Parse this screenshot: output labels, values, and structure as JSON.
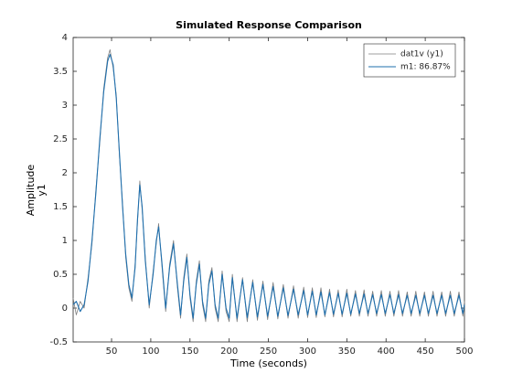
{
  "chart_data": {
    "type": "line",
    "title": "Simulated Response Comparison",
    "xlabel": "Time (seconds)",
    "ylabel": "Amplitude",
    "ylabel_sub": "y1",
    "x": [
      1,
      5,
      10,
      15,
      20,
      25,
      30,
      35,
      40,
      45,
      48,
      52,
      56,
      60,
      64,
      68,
      72,
      76,
      80,
      83,
      86,
      89,
      93,
      98,
      103,
      107,
      110,
      114,
      119,
      124,
      129,
      134,
      138,
      142,
      146,
      150,
      154,
      158,
      162,
      166,
      170,
      174,
      178,
      182,
      186,
      191,
      196,
      200,
      204,
      210,
      217,
      223,
      230,
      236,
      243,
      249,
      256,
      262,
      269,
      275,
      282,
      288,
      295,
      300,
      306,
      311,
      317,
      322,
      328,
      333,
      339,
      344,
      350,
      355,
      361,
      366,
      372,
      377,
      383,
      388,
      394,
      399,
      405,
      410,
      416,
      421,
      427,
      432,
      438,
      443,
      449,
      454,
      460,
      465,
      471,
      476,
      482,
      487,
      493,
      498,
      500
    ],
    "series": [
      {
        "name": "dat1v (y1)",
        "color": "#7f7f7f",
        "values": [
          0.15,
          -0.1,
          0.1,
          0,
          0.45,
          0.95,
          1.75,
          2.45,
          3.25,
          3.7,
          3.82,
          3.55,
          3.15,
          2.25,
          1.55,
          0.75,
          0.3,
          0.1,
          0.65,
          1.25,
          1.88,
          1.45,
          0.75,
          0,
          0.55,
          0.95,
          1.25,
          0.65,
          -0.05,
          0.65,
          1.0,
          0.3,
          -0.15,
          0.45,
          0.8,
          0.15,
          -0.2,
          0.4,
          0.7,
          0.05,
          -0.2,
          0.4,
          0.6,
          0,
          -0.2,
          0.55,
          -0.05,
          -0.2,
          0.5,
          -0.2,
          0.45,
          -0.2,
          0.42,
          -0.18,
          0.4,
          -0.17,
          0.38,
          -0.16,
          0.35,
          -0.15,
          0.33,
          -0.15,
          0.31,
          -0.14,
          0.3,
          -0.14,
          0.3,
          -0.13,
          0.28,
          -0.13,
          0.27,
          -0.13,
          0.28,
          -0.12,
          0.26,
          -0.12,
          0.27,
          -0.12,
          0.25,
          -0.12,
          0.26,
          -0.12,
          0.25,
          -0.12,
          0.26,
          -0.12,
          0.24,
          -0.12,
          0.25,
          -0.12,
          0.24,
          -0.12,
          0.25,
          -0.12,
          0.24,
          -0.12,
          0.25,
          -0.12,
          0.24,
          -0.12,
          0.1
        ]
      },
      {
        "name": "m1: 86.87%",
        "color": "#1f6fad",
        "values": [
          0.05,
          0.1,
          -0.05,
          0.05,
          0.4,
          1.0,
          1.7,
          2.5,
          3.2,
          3.65,
          3.75,
          3.6,
          3.1,
          2.3,
          1.5,
          0.8,
          0.35,
          0.15,
          0.6,
          1.3,
          1.82,
          1.5,
          0.7,
          0.05,
          0.5,
          1.0,
          1.2,
          0.7,
          0,
          0.6,
          0.95,
          0.35,
          -0.1,
          0.4,
          0.75,
          0.2,
          -0.15,
          0.35,
          0.65,
          0.1,
          -0.15,
          0.35,
          0.55,
          0.05,
          -0.15,
          0.5,
          0,
          -0.15,
          0.45,
          -0.15,
          0.42,
          -0.14,
          0.38,
          -0.13,
          0.35,
          -0.12,
          0.32,
          -0.12,
          0.3,
          -0.11,
          0.28,
          -0.1,
          0.26,
          -0.1,
          0.25,
          -0.1,
          0.24,
          -0.1,
          0.23,
          -0.09,
          0.22,
          -0.09,
          0.22,
          -0.09,
          0.21,
          -0.08,
          0.21,
          -0.08,
          0.2,
          -0.08,
          0.2,
          -0.08,
          0.2,
          -0.08,
          0.2,
          -0.08,
          0.19,
          -0.08,
          0.19,
          -0.08,
          0.19,
          -0.08,
          0.19,
          -0.08,
          0.19,
          -0.08,
          0.19,
          -0.08,
          0.19,
          -0.08,
          0.05
        ]
      }
    ],
    "xlim": [
      1,
      500
    ],
    "xticks": [
      50,
      100,
      150,
      200,
      250,
      300,
      350,
      400,
      450,
      500
    ],
    "ylim": [
      -0.5,
      4
    ],
    "yticks": [
      -0.5,
      0,
      0.5,
      1,
      1.5,
      2,
      2.5,
      3,
      3.5,
      4
    ],
    "grid": false,
    "legend": "northeast"
  }
}
